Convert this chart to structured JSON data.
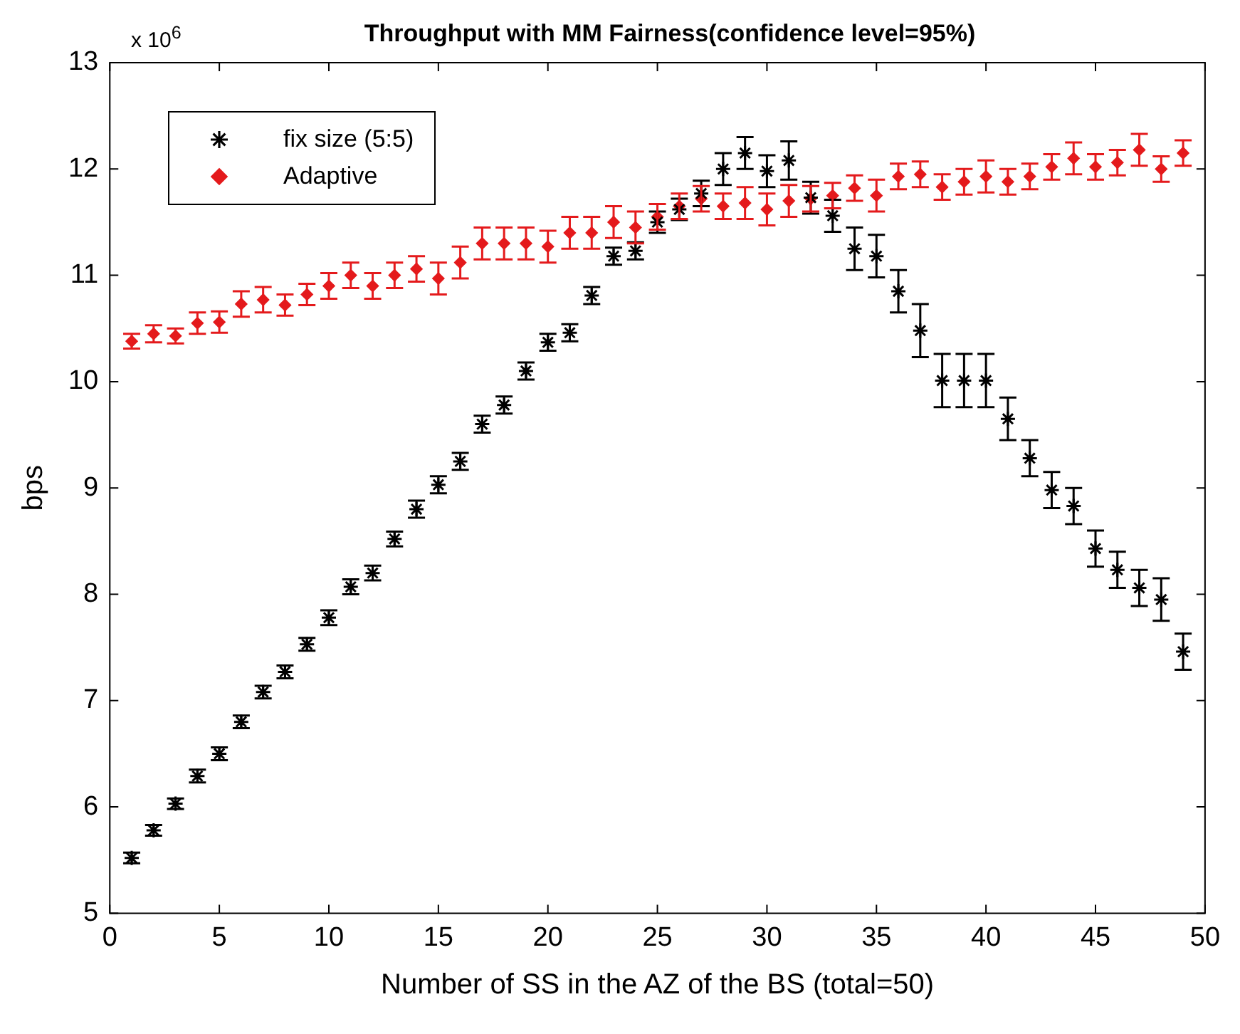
{
  "chart_data": {
    "type": "scatter",
    "title": "Throughput with MM Fairness(confidence level=95%)",
    "xlabel": "Number of SS in the AZ of the BS (total=50)",
    "ylabel": "bps",
    "annotations": [
      "x 10$^{6}$"
    ],
    "x": [
      1,
      2,
      3,
      4,
      5,
      6,
      7,
      8,
      9,
      10,
      11,
      12,
      13,
      14,
      15,
      16,
      17,
      18,
      19,
      20,
      21,
      22,
      23,
      24,
      25,
      26,
      27,
      28,
      29,
      30,
      31,
      32,
      33,
      34,
      35,
      36,
      37,
      38,
      39,
      40,
      41,
      42,
      43,
      44,
      45,
      46,
      47,
      48,
      49
    ],
    "series": [
      {
        "name": "fix size (5:5)",
        "color": "#000000",
        "marker": "cross",
        "values": [
          5.52,
          5.78,
          6.03,
          6.29,
          6.5,
          6.8,
          7.08,
          7.27,
          7.53,
          7.78,
          8.07,
          8.2,
          8.52,
          8.8,
          9.03,
          9.25,
          9.6,
          9.78,
          10.1,
          10.37,
          10.46,
          10.81,
          11.18,
          11.23,
          11.5,
          11.62,
          11.77,
          12.0,
          12.15,
          11.98,
          12.08,
          11.73,
          11.56,
          11.25,
          11.18,
          10.85,
          10.48,
          10.01,
          10.01,
          10.01,
          9.65,
          9.28,
          8.98,
          8.83,
          8.43,
          8.23,
          8.06,
          7.95,
          7.46
        ],
        "errors": [
          0.05,
          0.05,
          0.05,
          0.06,
          0.06,
          0.06,
          0.06,
          0.06,
          0.06,
          0.07,
          0.07,
          0.07,
          0.07,
          0.08,
          0.08,
          0.08,
          0.08,
          0.08,
          0.08,
          0.08,
          0.08,
          0.08,
          0.08,
          0.08,
          0.1,
          0.1,
          0.12,
          0.15,
          0.15,
          0.15,
          0.18,
          0.15,
          0.15,
          0.2,
          0.2,
          0.2,
          0.25,
          0.25,
          0.25,
          0.25,
          0.2,
          0.17,
          0.17,
          0.17,
          0.17,
          0.17,
          0.17,
          0.2,
          0.17
        ]
      },
      {
        "name": "Adaptive",
        "color": "#e41a1c",
        "marker": "diamond",
        "values": [
          10.38,
          10.45,
          10.43,
          10.55,
          10.56,
          10.73,
          10.77,
          10.72,
          10.82,
          10.9,
          11.0,
          10.9,
          11.0,
          11.06,
          10.97,
          11.12,
          11.3,
          11.3,
          11.3,
          11.27,
          11.4,
          11.4,
          11.5,
          11.45,
          11.55,
          11.65,
          11.72,
          11.65,
          11.68,
          11.62,
          11.7,
          11.72,
          11.75,
          11.82,
          11.75,
          11.93,
          11.95,
          11.83,
          11.88,
          11.93,
          11.88,
          11.93,
          12.02,
          12.1,
          12.02,
          12.06,
          12.18,
          12.0,
          12.15
        ],
        "errors": [
          0.07,
          0.08,
          0.07,
          0.1,
          0.1,
          0.12,
          0.12,
          0.1,
          0.1,
          0.12,
          0.12,
          0.12,
          0.12,
          0.12,
          0.15,
          0.15,
          0.15,
          0.15,
          0.15,
          0.15,
          0.15,
          0.15,
          0.15,
          0.15,
          0.12,
          0.12,
          0.12,
          0.12,
          0.15,
          0.15,
          0.15,
          0.12,
          0.12,
          0.12,
          0.15,
          0.12,
          0.12,
          0.12,
          0.12,
          0.15,
          0.12,
          0.12,
          0.12,
          0.15,
          0.12,
          0.12,
          0.15,
          0.12,
          0.12
        ]
      }
    ],
    "xlim": [
      0,
      50
    ],
    "xticks": [
      0,
      5,
      10,
      15,
      20,
      25,
      30,
      35,
      40,
      45,
      50
    ],
    "ylim": [
      5,
      13
    ],
    "yticks": [
      5,
      6,
      7,
      8,
      9,
      10,
      11,
      12,
      13
    ],
    "grid": false,
    "legend": "top left"
  }
}
